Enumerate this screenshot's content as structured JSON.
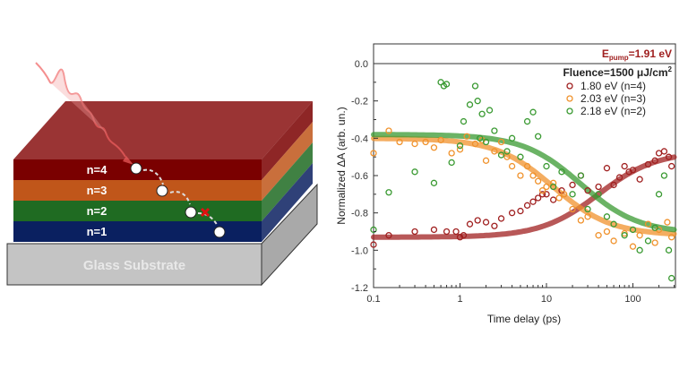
{
  "diagram": {
    "layers": [
      {
        "label": "n=4",
        "color": "#7a0000"
      },
      {
        "label": "n=3",
        "color": "#c0561a"
      },
      {
        "label": "n=2",
        "color": "#1f6b22"
      },
      {
        "label": "n=1",
        "color": "#0a2060"
      }
    ],
    "substrate_label": "Glass Substrate",
    "top_color": "#9a3434"
  },
  "chart_data": {
    "type": "scatter",
    "title": "",
    "annotation_pump": {
      "prefix": "E",
      "sub": "pump",
      "suffix": "=1.91 eV"
    },
    "annotation_fluence": "Fluence=1500 μJ/cm",
    "annotation_fluence_sup": "2",
    "xlabel": "Time delay (ps)",
    "ylabel": "Normalized ΔA (arb. un.)",
    "xscale": "log",
    "xlim": [
      0.1,
      300
    ],
    "ylim": [
      -1.2,
      0.1
    ],
    "xticks": [
      "0.1",
      "1",
      "10",
      "100"
    ],
    "xtick_values": [
      0.1,
      1,
      10,
      100
    ],
    "yticks": [
      "0.0",
      "-0.2",
      "-0.4",
      "-0.6",
      "-0.8",
      "-1.0",
      "-1.2"
    ],
    "ytick_values": [
      0.0,
      -0.2,
      -0.4,
      -0.6,
      -0.8,
      -1.0,
      -1.2
    ],
    "legend_position": "top-right",
    "series": [
      {
        "name": "1.80 eV (n=4)",
        "color": "#a02020",
        "fit": {
          "start": -0.93,
          "end": -0.47,
          "tau": 40
        },
        "x": [
          0.1,
          0.15,
          0.3,
          0.5,
          0.7,
          0.9,
          1.0,
          1.1,
          1.3,
          1.6,
          2,
          2.5,
          3,
          4,
          5,
          6,
          7,
          8,
          9,
          10,
          12,
          15,
          20,
          25,
          30,
          40,
          50,
          60,
          70,
          80,
          90,
          100,
          120,
          150,
          180,
          200,
          230,
          260,
          280
        ],
        "y": [
          -0.97,
          -0.92,
          -0.9,
          -0.89,
          -0.9,
          -0.9,
          -0.93,
          -0.92,
          -0.86,
          -0.84,
          -0.85,
          -0.87,
          -0.83,
          -0.8,
          -0.79,
          -0.76,
          -0.74,
          -0.72,
          -0.7,
          -0.7,
          -0.73,
          -0.68,
          -0.65,
          -0.6,
          -0.68,
          -0.66,
          -0.56,
          -0.65,
          -0.61,
          -0.55,
          -0.58,
          -0.57,
          -0.62,
          -0.54,
          -0.52,
          -0.48,
          -0.47,
          -0.5,
          -0.55
        ]
      },
      {
        "name": "2.03 eV (n=3)",
        "color": "#f0922c",
        "fit": {
          "start": -0.4,
          "end": -0.92,
          "tau": 12
        },
        "x": [
          0.1,
          0.15,
          0.2,
          0.3,
          0.4,
          0.5,
          0.6,
          0.8,
          1.0,
          1.2,
          1.5,
          1.8,
          2,
          2.5,
          3,
          3.5,
          4,
          5,
          6,
          7,
          8,
          9,
          10,
          12,
          14,
          16,
          20,
          25,
          30,
          40,
          50,
          60,
          80,
          100,
          120,
          150,
          180,
          200,
          250,
          280
        ],
        "y": [
          -0.48,
          -0.36,
          -0.42,
          -0.43,
          -0.42,
          -0.45,
          -0.41,
          -0.48,
          -0.46,
          -0.39,
          -0.43,
          -0.41,
          -0.52,
          -0.47,
          -0.42,
          -0.5,
          -0.55,
          -0.6,
          -0.55,
          -0.6,
          -0.63,
          -0.68,
          -0.66,
          -0.64,
          -0.72,
          -0.7,
          -0.78,
          -0.84,
          -0.82,
          -0.92,
          -0.9,
          -0.95,
          -0.91,
          -0.98,
          -0.92,
          -0.86,
          -0.96,
          -0.89,
          -0.85,
          -0.93
        ]
      },
      {
        "name": "2.18 eV (n=2)",
        "color": "#3a9a32",
        "fit": {
          "start": -0.38,
          "end": -0.91,
          "tau": 25
        },
        "x": [
          0.1,
          0.15,
          0.3,
          0.5,
          0.6,
          0.65,
          0.7,
          0.8,
          1.0,
          1.1,
          1.3,
          1.5,
          1.6,
          1.7,
          1.8,
          2,
          2.2,
          2.5,
          3,
          3.5,
          4,
          5,
          6,
          7,
          8,
          10,
          12,
          15,
          20,
          25,
          30,
          40,
          50,
          60,
          80,
          100,
          120,
          150,
          180,
          200,
          230,
          260,
          280
        ],
        "y": [
          -0.89,
          -0.69,
          -0.58,
          -0.64,
          -0.1,
          -0.12,
          -0.11,
          -0.53,
          -0.44,
          -0.31,
          -0.22,
          -0.12,
          -0.2,
          -0.4,
          -0.27,
          -0.42,
          -0.25,
          -0.36,
          -0.49,
          -0.47,
          -0.4,
          -0.5,
          -0.31,
          -0.26,
          -0.39,
          -0.55,
          -0.66,
          -0.58,
          -0.7,
          -0.6,
          -0.78,
          -0.7,
          -0.82,
          -0.86,
          -0.92,
          -0.89,
          -1.0,
          -0.95,
          -0.88,
          -0.7,
          -0.6,
          -1.0,
          -1.15
        ]
      }
    ]
  }
}
